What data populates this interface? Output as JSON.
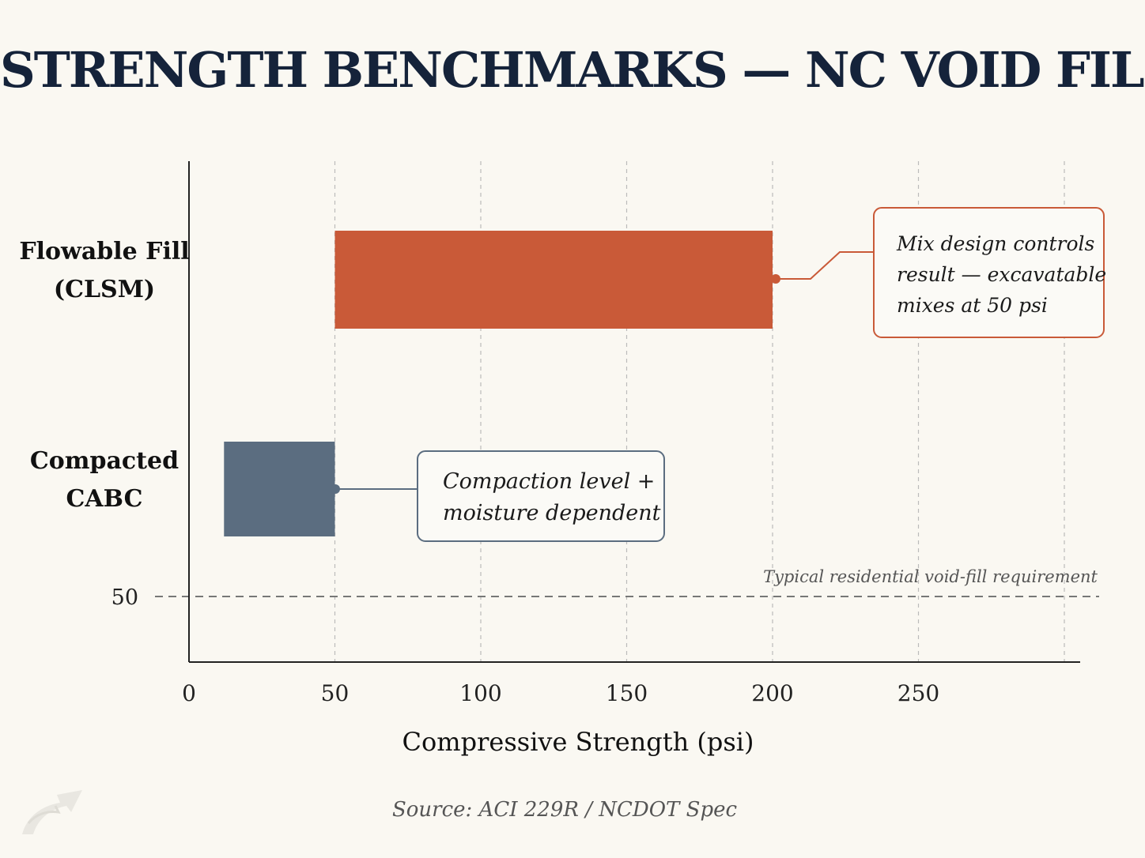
{
  "title": "STRENGTH BENCHMARKS — NC VOID FILL",
  "source": "Source: ACI 229R / NCDOT Spec",
  "colors": {
    "flowable": "#c95a38",
    "cabc": "#5b6d80",
    "axis": "#222222",
    "grid": "#bbbbbb",
    "reference": "#777777",
    "background": "#faf8f2"
  },
  "chart_data": {
    "type": "bar",
    "orientation": "horizontal",
    "xlabel": "Compressive Strength (psi)",
    "ylabel": "",
    "xlim": [
      0,
      305
    ],
    "xticks": [
      "0",
      "50",
      "100",
      "150",
      "200",
      "250"
    ],
    "grid": "vertical dashed",
    "bars": [
      {
        "category": [
          "Flowable Fill",
          "(CLSM)"
        ],
        "min": 50,
        "max": 200,
        "color": "#c95a38",
        "annotation": [
          "Mix design controls",
          "result — excavatable",
          "mixes at 50 psi"
        ]
      },
      {
        "category": [
          "Compacted",
          "CABC"
        ],
        "min": 12,
        "max": 50,
        "color": "#5b6d80",
        "annotation": [
          "Compaction level +",
          "moisture dependent"
        ]
      }
    ],
    "reference_line": {
      "label": "50",
      "text": "Typical residential void-fill requirement"
    }
  }
}
